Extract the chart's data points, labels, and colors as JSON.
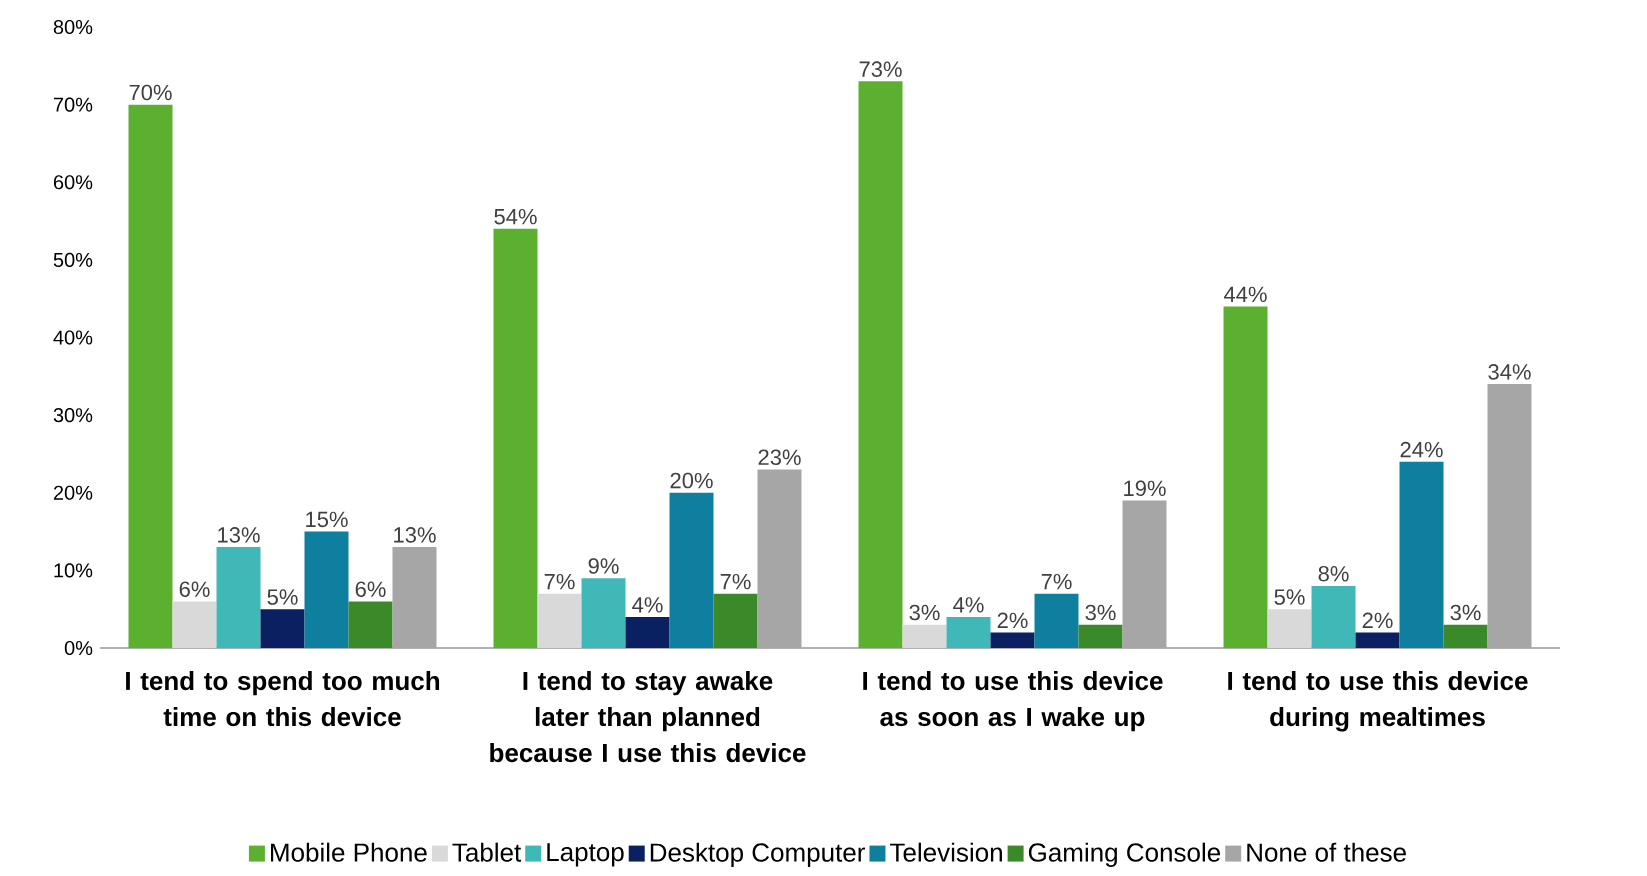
{
  "chart_data": {
    "type": "bar",
    "categories": [
      "I tend to spend too much time on this device",
      "I tend to stay awake later than planned because I use this device",
      "I tend to use this device as soon as I wake up",
      "I tend to use this device during mealtimes"
    ],
    "series": [
      {
        "name": "Mobile Phone",
        "color": "#5cb030",
        "values": [
          70,
          54,
          73,
          44
        ],
        "value_labels": [
          "70%",
          "54%",
          "73%",
          "44%"
        ]
      },
      {
        "name": "Tablet",
        "color": "#d9d9d9",
        "values": [
          6,
          7,
          3,
          5
        ],
        "value_labels": [
          "6%",
          "7%",
          "3%",
          "5%"
        ]
      },
      {
        "name": "Laptop",
        "color": "#40b8b8",
        "values": [
          13,
          9,
          4,
          8
        ],
        "value_labels": [
          "13%",
          "9%",
          "4%",
          "8%"
        ]
      },
      {
        "name": "Desktop Computer",
        "color": "#0a2060",
        "values": [
          5,
          4,
          2,
          2
        ],
        "value_labels": [
          "5%",
          "4%",
          "2%",
          "2%"
        ]
      },
      {
        "name": "Television",
        "color": "#0f7fa0",
        "values": [
          15,
          20,
          7,
          24
        ],
        "value_labels": [
          "15%",
          "20%",
          "7%",
          "24%"
        ]
      },
      {
        "name": "Gaming Console",
        "color": "#3a8a2a",
        "values": [
          6,
          7,
          3,
          3
        ],
        "value_labels": [
          "6%",
          "7%",
          "3%",
          "3%"
        ]
      },
      {
        "name": "None of these",
        "color": "#a6a6a6",
        "values": [
          13,
          23,
          19,
          34
        ],
        "value_labels": [
          "13%",
          "23%",
          "19%",
          "34%"
        ]
      }
    ],
    "ylim": [
      0,
      80
    ],
    "yticks": [
      {
        "value": 0,
        "label": "0%"
      },
      {
        "value": 10,
        "label": "10%"
      },
      {
        "value": 20,
        "label": "20%"
      },
      {
        "value": 30,
        "label": "30%"
      },
      {
        "value": 40,
        "label": "40%"
      },
      {
        "value": 50,
        "label": "50%"
      },
      {
        "value": 60,
        "label": "60%"
      },
      {
        "value": 70,
        "label": "70%"
      },
      {
        "value": 80,
        "label": "80%"
      }
    ],
    "legend": "bottom"
  }
}
